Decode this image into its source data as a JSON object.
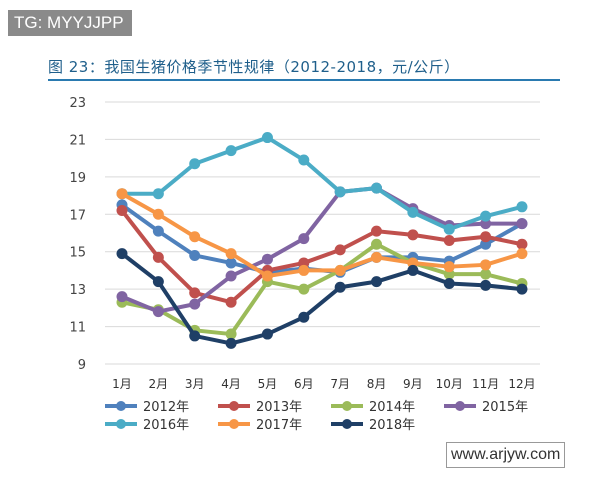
{
  "watermark": "TG: MYYJJPP",
  "site_watermark": "www.arjyw.com",
  "chart_data": {
    "type": "line",
    "title": "图 23：我国生猪价格季节性规律（2012-2018，元/公斤）",
    "categories": [
      "1月",
      "2月",
      "3月",
      "4月",
      "5月",
      "6月",
      "7月",
      "8月",
      "9月",
      "10月",
      "11月",
      "12月"
    ],
    "ylim": [
      9,
      23
    ],
    "yticks": [
      9,
      11,
      13,
      15,
      17,
      19,
      21,
      23
    ],
    "grid": true,
    "legend_placement": "bottom",
    "series": [
      {
        "name": "2012年",
        "color": "#4f81bd",
        "values": [
          17.5,
          16.1,
          14.8,
          14.4,
          13.9,
          14.1,
          13.9,
          14.7,
          14.7,
          14.5,
          15.4,
          16.5
        ]
      },
      {
        "name": "2013年",
        "color": "#c0504d",
        "values": [
          17.2,
          14.7,
          12.8,
          12.3,
          14.0,
          14.4,
          15.1,
          16.1,
          15.9,
          15.6,
          15.8,
          15.4
        ]
      },
      {
        "name": "2014年",
        "color": "#9bbb59",
        "values": [
          12.3,
          11.9,
          10.8,
          10.6,
          13.4,
          13.0,
          14.0,
          15.4,
          14.4,
          13.8,
          13.8,
          13.3
        ]
      },
      {
        "name": "2015年",
        "color": "#8064a2",
        "values": [
          12.6,
          11.8,
          12.2,
          13.7,
          14.6,
          15.7,
          18.2,
          18.4,
          17.3,
          16.4,
          16.5,
          16.5
        ]
      },
      {
        "name": "2016年",
        "color": "#4bacc6",
        "values": [
          18.1,
          18.1,
          19.7,
          20.4,
          21.1,
          19.9,
          18.2,
          18.4,
          17.1,
          16.2,
          16.9,
          17.4
        ]
      },
      {
        "name": "2017年",
        "color": "#f79646",
        "values": [
          18.1,
          17.0,
          15.8,
          14.9,
          13.7,
          14.0,
          14.0,
          14.7,
          14.4,
          14.2,
          14.3,
          14.9
        ]
      },
      {
        "name": "2018年",
        "color": "#1f3f66",
        "values": [
          14.9,
          13.4,
          10.5,
          10.1,
          10.6,
          11.5,
          13.1,
          13.4,
          14.0,
          13.3,
          13.2,
          13.0
        ]
      }
    ]
  }
}
